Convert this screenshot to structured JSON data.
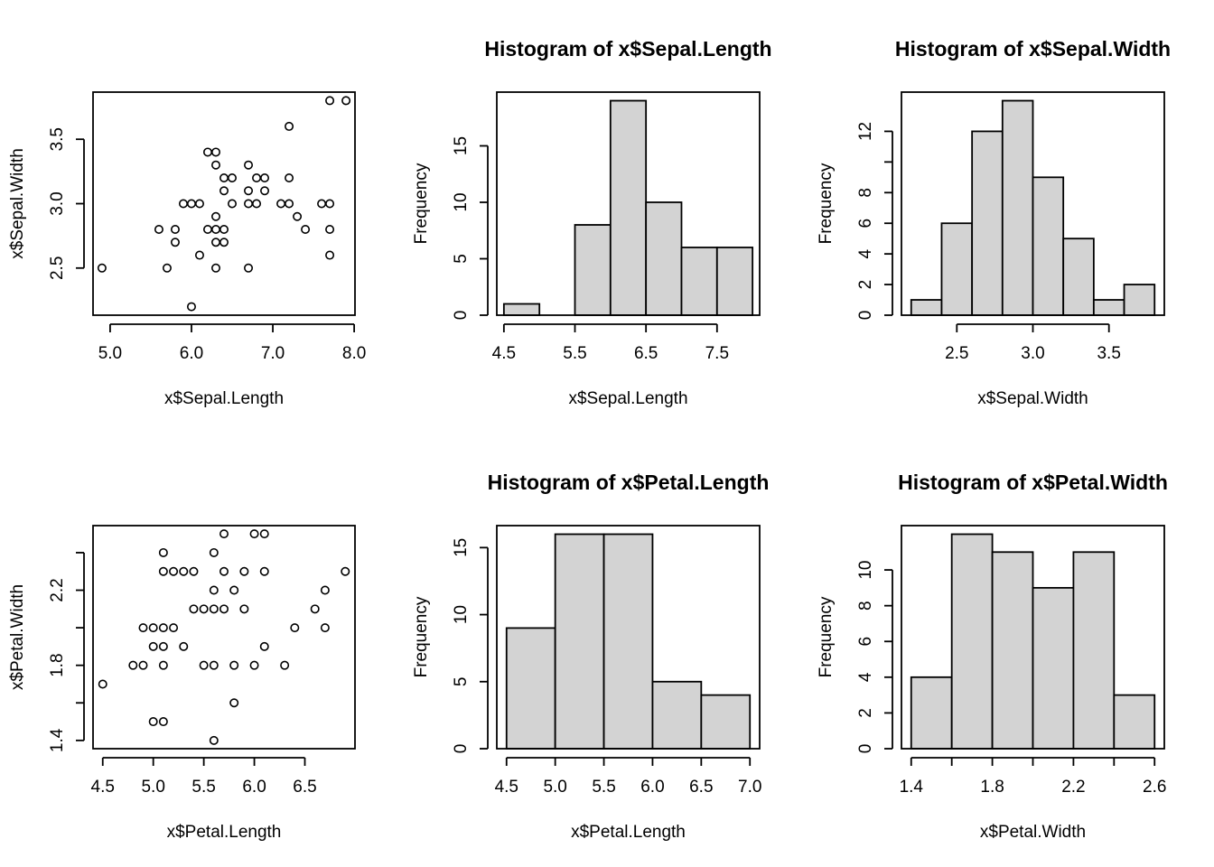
{
  "colors": {
    "bar_fill": "#d3d3d3",
    "stroke": "#000000",
    "background": "#ffffff"
  },
  "chart_data": [
    {
      "type": "scatter",
      "title": "",
      "xlabel": "x$Sepal.Length",
      "ylabel": "x$Sepal.Width",
      "xlim": [
        4.79,
        8.01
      ],
      "ylim": [
        2.134,
        3.866
      ],
      "xticks": [
        5.0,
        6.0,
        7.0,
        8.0
      ],
      "xtick_labels": [
        "5.0",
        "6.0",
        "7.0",
        "8.0"
      ],
      "yticks": [
        2.5,
        3.0,
        3.5
      ],
      "ytick_labels": [
        "2.5",
        "3.0",
        "3.5"
      ],
      "points": [
        [
          4.9,
          2.5
        ],
        [
          5.6,
          2.8
        ],
        [
          5.7,
          2.5
        ],
        [
          5.8,
          2.8
        ],
        [
          5.8,
          2.7
        ],
        [
          5.9,
          3.0
        ],
        [
          6.0,
          3.0
        ],
        [
          6.0,
          2.2
        ],
        [
          6.1,
          3.0
        ],
        [
          6.1,
          2.6
        ],
        [
          6.2,
          3.4
        ],
        [
          6.2,
          2.8
        ],
        [
          6.3,
          3.4
        ],
        [
          6.3,
          3.3
        ],
        [
          6.3,
          2.9
        ],
        [
          6.3,
          2.8
        ],
        [
          6.3,
          2.7
        ],
        [
          6.3,
          2.5
        ],
        [
          6.4,
          3.2
        ],
        [
          6.4,
          3.1
        ],
        [
          6.4,
          2.8
        ],
        [
          6.4,
          2.7
        ],
        [
          6.5,
          3.2
        ],
        [
          6.5,
          3.0
        ],
        [
          6.7,
          3.3
        ],
        [
          6.7,
          3.1
        ],
        [
          6.7,
          3.0
        ],
        [
          6.7,
          2.5
        ],
        [
          6.8,
          3.2
        ],
        [
          6.8,
          3.0
        ],
        [
          6.9,
          3.2
        ],
        [
          6.9,
          3.1
        ],
        [
          7.1,
          3.0
        ],
        [
          7.2,
          3.6
        ],
        [
          7.2,
          3.2
        ],
        [
          7.2,
          3.0
        ],
        [
          7.3,
          2.9
        ],
        [
          7.4,
          2.8
        ],
        [
          7.6,
          3.0
        ],
        [
          7.7,
          3.8
        ],
        [
          7.7,
          3.0
        ],
        [
          7.7,
          2.8
        ],
        [
          7.7,
          2.6
        ],
        [
          7.9,
          3.8
        ]
      ]
    },
    {
      "type": "bar",
      "title": "Histogram of x$Sepal.Length",
      "xlabel": "x$Sepal.Length",
      "ylabel": "Frequency",
      "xlim": [
        4.4,
        8.1
      ],
      "ylim": [
        0,
        19.76
      ],
      "breaks": [
        4.5,
        5.0,
        5.5,
        6.0,
        6.5,
        7.0,
        7.5,
        8.0
      ],
      "counts": [
        1,
        0,
        8,
        19,
        10,
        6,
        6
      ],
      "xticks": [
        4.5,
        5.5,
        6.5,
        7.5
      ],
      "xtick_labels": [
        "4.5",
        "5.5",
        "6.5",
        "7.5"
      ],
      "yticks": [
        0,
        5,
        10,
        15
      ],
      "ytick_labels": [
        "0",
        "5",
        "10",
        "15"
      ]
    },
    {
      "type": "bar",
      "title": "Histogram of x$Sepal.Width",
      "xlabel": "x$Sepal.Width",
      "ylabel": "Frequency",
      "xlim": [
        2.136,
        3.864
      ],
      "ylim": [
        0,
        14.56
      ],
      "breaks": [
        2.2,
        2.4,
        2.6,
        2.8,
        3.0,
        3.2,
        3.4,
        3.6,
        3.8
      ],
      "counts": [
        1,
        6,
        12,
        14,
        9,
        5,
        1,
        2
      ],
      "xticks": [
        2.5,
        3.0,
        3.5
      ],
      "xtick_labels": [
        "2.5",
        "3.0",
        "3.5"
      ],
      "yticks": [
        0,
        2,
        4,
        6,
        8,
        12
      ],
      "ytick_labels": [
        "0",
        "2",
        "4",
        "6",
        "8",
        "12"
      ],
      "yticks_minor": [
        10
      ]
    },
    {
      "type": "scatter",
      "title": "",
      "xlabel": "x$Petal.Length",
      "ylabel": "x$Petal.Width",
      "xlim": [
        4.404,
        6.996
      ],
      "ylim": [
        1.356,
        2.544
      ],
      "xticks": [
        4.5,
        5.0,
        5.5,
        6.0,
        6.5
      ],
      "xtick_labels": [
        "4.5",
        "5.0",
        "5.5",
        "6.0",
        "6.5"
      ],
      "yticks": [
        1.4,
        1.8,
        2.2
      ],
      "ytick_labels": [
        "1.4",
        "1.8",
        "2.2"
      ],
      "yticks_minor": [
        1.6,
        2.0,
        2.4
      ],
      "points": [
        [
          4.5,
          1.7
        ],
        [
          4.8,
          1.8
        ],
        [
          4.9,
          1.8
        ],
        [
          4.9,
          2.0
        ],
        [
          5.0,
          2.0
        ],
        [
          5.0,
          1.9
        ],
        [
          5.0,
          1.5
        ],
        [
          5.1,
          2.4
        ],
        [
          5.1,
          2.3
        ],
        [
          5.1,
          2.0
        ],
        [
          5.1,
          1.9
        ],
        [
          5.1,
          1.8
        ],
        [
          5.1,
          1.5
        ],
        [
          5.2,
          2.3
        ],
        [
          5.2,
          2.0
        ],
        [
          5.3,
          2.3
        ],
        [
          5.3,
          1.9
        ],
        [
          5.4,
          2.3
        ],
        [
          5.4,
          2.1
        ],
        [
          5.5,
          2.1
        ],
        [
          5.5,
          1.8
        ],
        [
          5.6,
          2.4
        ],
        [
          5.6,
          2.2
        ],
        [
          5.6,
          2.1
        ],
        [
          5.6,
          1.8
        ],
        [
          5.6,
          1.4
        ],
        [
          5.7,
          2.5
        ],
        [
          5.7,
          2.3
        ],
        [
          5.7,
          2.1
        ],
        [
          5.8,
          2.2
        ],
        [
          5.8,
          1.8
        ],
        [
          5.8,
          1.6
        ],
        [
          5.9,
          2.3
        ],
        [
          5.9,
          2.1
        ],
        [
          6.0,
          2.5
        ],
        [
          6.0,
          1.8
        ],
        [
          6.1,
          2.5
        ],
        [
          6.1,
          2.3
        ],
        [
          6.1,
          1.9
        ],
        [
          6.3,
          1.8
        ],
        [
          6.4,
          2.0
        ],
        [
          6.6,
          2.1
        ],
        [
          6.7,
          2.2
        ],
        [
          6.7,
          2.0
        ],
        [
          6.9,
          2.3
        ]
      ]
    },
    {
      "type": "bar",
      "title": "Histogram of x$Petal.Length",
      "xlabel": "x$Petal.Length",
      "ylabel": "Frequency",
      "xlim": [
        4.4,
        7.1
      ],
      "ylim": [
        0,
        16.64
      ],
      "breaks": [
        4.5,
        5.0,
        5.5,
        6.0,
        6.5,
        7.0
      ],
      "counts": [
        9,
        16,
        16,
        5,
        4
      ],
      "xticks": [
        4.5,
        5.0,
        5.5,
        6.0,
        6.5,
        7.0
      ],
      "xtick_labels": [
        "4.5",
        "5.0",
        "5.5",
        "6.0",
        "6.5",
        "7.0"
      ],
      "yticks": [
        0,
        5,
        10,
        15
      ],
      "ytick_labels": [
        "0",
        "5",
        "10",
        "15"
      ]
    },
    {
      "type": "bar",
      "title": "Histogram of x$Petal.Width",
      "xlabel": "x$Petal.Width",
      "ylabel": "Frequency",
      "xlim": [
        1.352,
        2.648
      ],
      "ylim": [
        0,
        12.48
      ],
      "breaks": [
        1.4,
        1.6,
        1.8,
        2.0,
        2.2,
        2.4,
        2.6
      ],
      "counts": [
        4,
        12,
        11,
        9,
        11,
        3
      ],
      "xticks": [
        1.4,
        1.8,
        2.2,
        2.6
      ],
      "xtick_labels": [
        "1.4",
        "1.8",
        "2.2",
        "2.6"
      ],
      "xticks_minor": [
        1.6,
        2.0,
        2.4
      ],
      "yticks": [
        0,
        2,
        4,
        6,
        8,
        10
      ],
      "ytick_labels": [
        "0",
        "2",
        "4",
        "6",
        "8",
        "10"
      ]
    }
  ]
}
